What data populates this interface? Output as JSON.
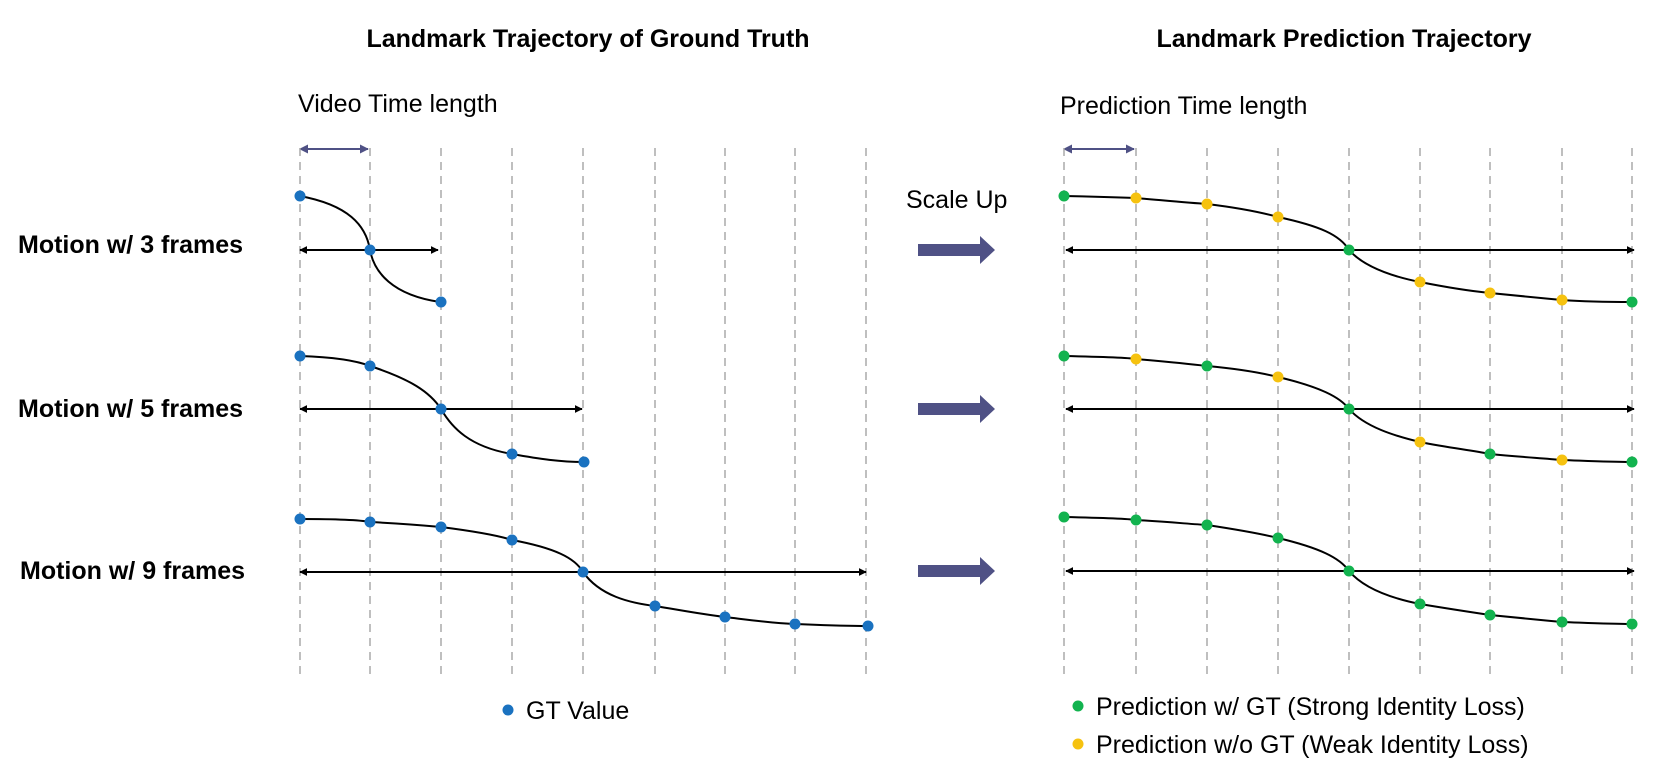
{
  "titles": {
    "left": "Landmark Trajectory of Ground Truth",
    "right": "Landmark Prediction Trajectory"
  },
  "subtitles": {
    "left": "Video Time length",
    "right": "Prediction Time length"
  },
  "middle_label": "Scale Up",
  "rows": [
    {
      "label": "Motion w/ 3 frames",
      "frames": 3
    },
    {
      "label": "Motion w/ 5 frames",
      "frames": 5
    },
    {
      "label": "Motion w/ 9 frames",
      "frames": 9
    }
  ],
  "prediction_rows": [
    {
      "point_types": [
        "gt",
        "nogt",
        "nogt",
        "nogt",
        "gt",
        "nogt",
        "nogt",
        "nogt",
        "gt"
      ]
    },
    {
      "point_types": [
        "gt",
        "nogt",
        "gt",
        "nogt",
        "gt",
        "nogt",
        "gt",
        "nogt",
        "gt"
      ]
    },
    {
      "point_types": [
        "gt",
        "gt",
        "gt",
        "gt",
        "gt",
        "gt",
        "gt",
        "gt",
        "gt"
      ]
    }
  ],
  "legend": {
    "gt_value": "GT Value",
    "pred_gt": "Prediction w/ GT (Strong Identity Loss)",
    "pred_nogt": "Prediction w/o GT (Weak Identity Loss)"
  },
  "colors": {
    "gt_point": "#1a72c0",
    "pred_gt_point": "#12b34f",
    "pred_nogt_point": "#f6c20f",
    "arrow_fill": "#4f5185",
    "gridline": "#aaaaaa",
    "curve": "#000000"
  }
}
